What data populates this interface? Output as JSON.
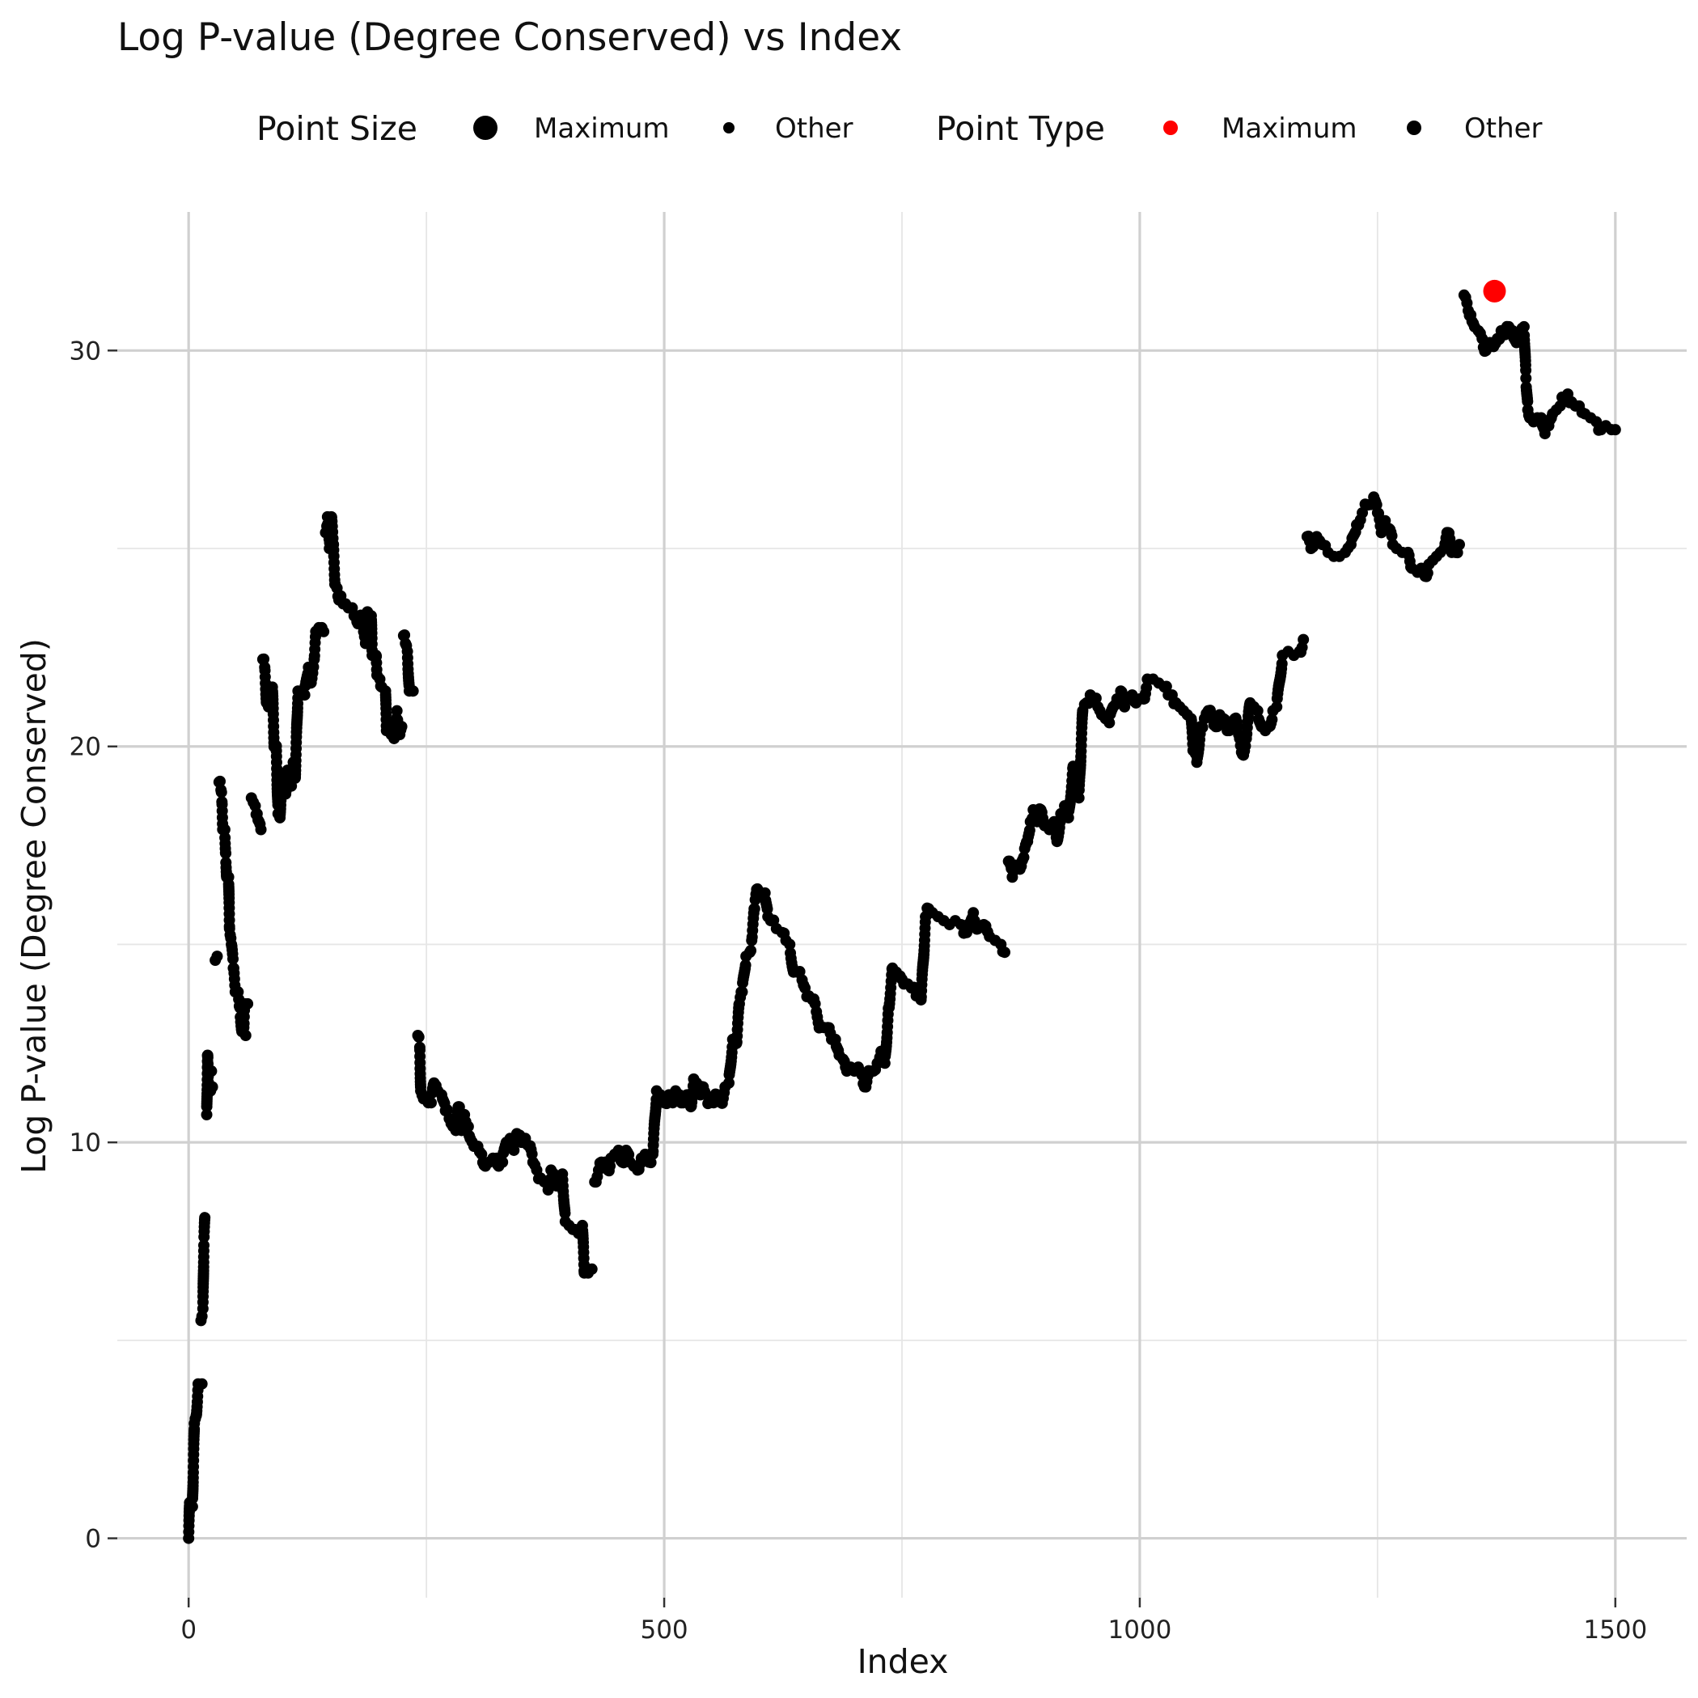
{
  "chart_data": {
    "type": "scatter",
    "title": "Log P-value (Degree Conserved) vs Index",
    "xlabel": "Index",
    "ylabel": "Log P-value (Degree Conserved)",
    "xlim": [
      -75,
      1575
    ],
    "ylim": [
      -1.5,
      33.5
    ],
    "x_ticks": [
      0,
      500,
      1000,
      1500
    ],
    "y_ticks": [
      0,
      10,
      20,
      30
    ],
    "grid": true,
    "legend_position": "top",
    "colors": {
      "maximum": "#ff0000",
      "other": "#000000"
    },
    "legends": [
      {
        "title": "Point Size",
        "entries": [
          {
            "label": "Maximum",
            "kind": "size-large"
          },
          {
            "label": "Other",
            "kind": "size-small"
          }
        ]
      },
      {
        "title": "Point Type",
        "entries": [
          {
            "label": "Maximum",
            "kind": "color-red"
          },
          {
            "label": "Other",
            "kind": "color-black"
          }
        ]
      }
    ],
    "maximum_point": {
      "x": 1373,
      "y": 31.5
    },
    "trace": [
      [
        0,
        0
      ],
      [
        1,
        0.9
      ],
      [
        4,
        0.8
      ],
      [
        6,
        2.9
      ],
      [
        8,
        3.1
      ],
      [
        10,
        3.9
      ],
      [
        14,
        3.9
      ],
      [
        13,
        5.5
      ],
      [
        15,
        5.8
      ],
      [
        16,
        7.4
      ],
      [
        17,
        8.1
      ],
      [
        19,
        10.7
      ],
      [
        20,
        12.2
      ],
      [
        21,
        11.4
      ],
      [
        23,
        11.3
      ],
      [
        25,
        11.4
      ],
      [
        24,
        11.8
      ],
      [
        28,
        14.6
      ],
      [
        30,
        14.7
      ],
      [
        32,
        19.1
      ],
      [
        34,
        18.9
      ],
      [
        35,
        18.6
      ],
      [
        36,
        17.9
      ],
      [
        38,
        17.9
      ],
      [
        39,
        17.3
      ],
      [
        40,
        16.7
      ],
      [
        42,
        16.7
      ],
      [
        43,
        15.4
      ],
      [
        45,
        15.0
      ],
      [
        47,
        14.4
      ],
      [
        49,
        13.8
      ],
      [
        52,
        13.8
      ],
      [
        54,
        13.4
      ],
      [
        56,
        12.8
      ],
      [
        58,
        12.9
      ],
      [
        59,
        13.5
      ],
      [
        62,
        13.5
      ],
      [
        60,
        12.7
      ],
      [
        66,
        18.7
      ],
      [
        70,
        18.5
      ],
      [
        72,
        18.3
      ],
      [
        74,
        18.1
      ],
      [
        76,
        17.9
      ],
      [
        78,
        22.2
      ],
      [
        80,
        22.0
      ],
      [
        82,
        21.1
      ],
      [
        84,
        21.0
      ],
      [
        86,
        21.3
      ],
      [
        88,
        21.5
      ],
      [
        90,
        20.0
      ],
      [
        92,
        20.0
      ],
      [
        94,
        18.3
      ],
      [
        96,
        18.2
      ],
      [
        98,
        19.3
      ],
      [
        100,
        19.1
      ],
      [
        102,
        18.8
      ],
      [
        104,
        19.4
      ],
      [
        106,
        19.3
      ],
      [
        108,
        19.0
      ],
      [
        110,
        19.6
      ],
      [
        112,
        19.2
      ],
      [
        115,
        21.4
      ],
      [
        118,
        21.3
      ],
      [
        122,
        21.3
      ],
      [
        126,
        22.0
      ],
      [
        128,
        21.6
      ],
      [
        132,
        22.2
      ],
      [
        134,
        22.9
      ],
      [
        137,
        23.0
      ],
      [
        140,
        23.0
      ],
      [
        142,
        22.9
      ],
      [
        144,
        25.4
      ],
      [
        146,
        25.8
      ],
      [
        148,
        25.0
      ],
      [
        150,
        25.8
      ],
      [
        152,
        25.1
      ],
      [
        154,
        24.1
      ],
      [
        156,
        24.0
      ],
      [
        158,
        23.7
      ],
      [
        160,
        23.8
      ],
      [
        165,
        23.6
      ],
      [
        168,
        23.5
      ],
      [
        172,
        23.5
      ],
      [
        176,
        23.3
      ],
      [
        178,
        23.1
      ],
      [
        180,
        23.3
      ],
      [
        184,
        22.9
      ],
      [
        186,
        22.6
      ],
      [
        188,
        23.4
      ],
      [
        192,
        23.3
      ],
      [
        193,
        22.3
      ],
      [
        197,
        22.3
      ],
      [
        198,
        21.8
      ],
      [
        201,
        21.7
      ],
      [
        203,
        21.5
      ],
      [
        207,
        21.4
      ],
      [
        208,
        20.4
      ],
      [
        213,
        20.3
      ],
      [
        216,
        20.2
      ],
      [
        219,
        20.9
      ],
      [
        222,
        20.3
      ],
      [
        224,
        20.5
      ],
      [
        226,
        22.8
      ],
      [
        228,
        22.6
      ],
      [
        230,
        22.4
      ],
      [
        232,
        21.4
      ],
      [
        236,
        21.4
      ],
      [
        241,
        12.7
      ],
      [
        243,
        12.4
      ],
      [
        244,
        11.3
      ],
      [
        247,
        11.1
      ],
      [
        252,
        11.0
      ],
      [
        255,
        11.0
      ],
      [
        258,
        11.5
      ],
      [
        262,
        11.3
      ],
      [
        266,
        11.2
      ],
      [
        270,
        10.8
      ],
      [
        274,
        10.6
      ],
      [
        278,
        10.4
      ],
      [
        281,
        10.3
      ],
      [
        284,
        10.9
      ],
      [
        287,
        10.3
      ],
      [
        290,
        10.7
      ],
      [
        294,
        10.4
      ],
      [
        296,
        10.1
      ],
      [
        300,
        9.9
      ],
      [
        304,
        9.9
      ],
      [
        308,
        9.7
      ],
      [
        312,
        9.4
      ],
      [
        316,
        9.5
      ],
      [
        320,
        9.6
      ],
      [
        324,
        9.6
      ],
      [
        326,
        9.4
      ],
      [
        330,
        9.5
      ],
      [
        334,
        10.0
      ],
      [
        338,
        10.1
      ],
      [
        342,
        9.8
      ],
      [
        346,
        10.2
      ],
      [
        350,
        10.0
      ],
      [
        354,
        10.1
      ],
      [
        358,
        9.9
      ],
      [
        362,
        9.5
      ],
      [
        366,
        9.3
      ],
      [
        370,
        9.1
      ],
      [
        374,
        9.0
      ],
      [
        378,
        8.8
      ],
      [
        381,
        9.3
      ],
      [
        384,
        9.2
      ],
      [
        387,
        8.9
      ],
      [
        390,
        9.1
      ],
      [
        393,
        9.2
      ],
      [
        396,
        8.0
      ],
      [
        400,
        7.9
      ],
      [
        404,
        7.8
      ],
      [
        406,
        7.8
      ],
      [
        410,
        7.7
      ],
      [
        414,
        7.9
      ],
      [
        416,
        6.7
      ],
      [
        420,
        6.7
      ],
      [
        424,
        6.8
      ],
      [
        427,
        9.0
      ],
      [
        431,
        9.3
      ],
      [
        434,
        9.5
      ],
      [
        438,
        9.5
      ],
      [
        441,
        9.3
      ],
      [
        444,
        9.6
      ],
      [
        448,
        9.7
      ],
      [
        452,
        9.8
      ],
      [
        456,
        9.5
      ],
      [
        460,
        9.8
      ],
      [
        464,
        9.5
      ],
      [
        468,
        9.4
      ],
      [
        472,
        9.3
      ],
      [
        476,
        9.6
      ],
      [
        480,
        9.7
      ],
      [
        484,
        9.5
      ],
      [
        488,
        9.7
      ],
      [
        492,
        11.3
      ],
      [
        496,
        11.2
      ],
      [
        500,
        11.0
      ],
      [
        505,
        11.2
      ],
      [
        509,
        11.0
      ],
      [
        512,
        11.3
      ],
      [
        516,
        11.2
      ],
      [
        520,
        11.0
      ],
      [
        524,
        11.2
      ],
      [
        528,
        10.9
      ],
      [
        531,
        11.6
      ],
      [
        534,
        11.5
      ],
      [
        538,
        11.2
      ],
      [
        541,
        11.4
      ],
      [
        544,
        11.2
      ],
      [
        548,
        11.0
      ],
      [
        552,
        11.0
      ],
      [
        556,
        11.2
      ],
      [
        560,
        11.0
      ],
      [
        564,
        11.4
      ],
      [
        568,
        11.5
      ],
      [
        572,
        12.6
      ],
      [
        576,
        12.5
      ],
      [
        579,
        13.5
      ],
      [
        582,
        13.8
      ],
      [
        586,
        14.7
      ],
      [
        590,
        14.8
      ],
      [
        592,
        15.1
      ],
      [
        595,
        15.9
      ],
      [
        598,
        16.4
      ],
      [
        602,
        16.3
      ],
      [
        606,
        16.3
      ],
      [
        609,
        15.7
      ],
      [
        612,
        15.6
      ],
      [
        618,
        15.4
      ],
      [
        624,
        15.3
      ],
      [
        628,
        15.1
      ],
      [
        632,
        15.0
      ],
      [
        636,
        14.3
      ],
      [
        640,
        14.3
      ],
      [
        645,
        14.1
      ],
      [
        648,
        13.9
      ],
      [
        652,
        13.7
      ],
      [
        656,
        13.6
      ],
      [
        660,
        13.3
      ],
      [
        664,
        12.9
      ],
      [
        668,
        12.9
      ],
      [
        672,
        12.9
      ],
      [
        676,
        12.6
      ],
      [
        680,
        12.6
      ],
      [
        684,
        12.2
      ],
      [
        688,
        12.1
      ],
      [
        692,
        11.8
      ],
      [
        696,
        11.9
      ],
      [
        700,
        11.8
      ],
      [
        704,
        11.9
      ],
      [
        708,
        11.7
      ],
      [
        712,
        11.4
      ],
      [
        716,
        11.8
      ],
      [
        720,
        11.8
      ],
      [
        724,
        12.0
      ],
      [
        728,
        12.3
      ],
      [
        732,
        12.0
      ],
      [
        736,
        13.4
      ],
      [
        740,
        14.4
      ],
      [
        744,
        14.3
      ],
      [
        748,
        14.2
      ],
      [
        752,
        14.0
      ],
      [
        756,
        14.0
      ],
      [
        760,
        13.9
      ],
      [
        765,
        13.7
      ],
      [
        770,
        13.6
      ],
      [
        775,
        15.7
      ],
      [
        778,
        15.9
      ],
      [
        782,
        15.8
      ],
      [
        788,
        15.7
      ],
      [
        794,
        15.6
      ],
      [
        800,
        15.5
      ],
      [
        806,
        15.6
      ],
      [
        812,
        15.5
      ],
      [
        818,
        15.3
      ],
      [
        822,
        15.5
      ],
      [
        825,
        15.8
      ],
      [
        830,
        15.4
      ],
      [
        836,
        15.5
      ],
      [
        842,
        15.2
      ],
      [
        848,
        15.1
      ],
      [
        854,
        15.0
      ],
      [
        858,
        14.8
      ],
      [
        862,
        17.1
      ],
      [
        866,
        16.7
      ],
      [
        870,
        17.0
      ],
      [
        874,
        16.9
      ],
      [
        878,
        17.2
      ],
      [
        882,
        17.6
      ],
      [
        885,
        18.1
      ],
      [
        888,
        18.4
      ],
      [
        892,
        18.1
      ],
      [
        896,
        18.4
      ],
      [
        900,
        18.0
      ],
      [
        905,
        17.9
      ],
      [
        910,
        18.1
      ],
      [
        913,
        17.6
      ],
      [
        917,
        18.3
      ],
      [
        921,
        18.5
      ],
      [
        925,
        18.2
      ],
      [
        930,
        19.5
      ],
      [
        933,
        18.8
      ],
      [
        936,
        18.7
      ],
      [
        940,
        20.9
      ],
      [
        944,
        21.1
      ],
      [
        948,
        21.3
      ],
      [
        952,
        21.2
      ],
      [
        956,
        21.0
      ],
      [
        960,
        20.8
      ],
      [
        964,
        20.7
      ],
      [
        968,
        20.6
      ],
      [
        972,
        21.0
      ],
      [
        976,
        21.2
      ],
      [
        980,
        21.4
      ],
      [
        984,
        21.0
      ],
      [
        988,
        21.2
      ],
      [
        992,
        21.3
      ],
      [
        996,
        21.1
      ],
      [
        1000,
        21.2
      ],
      [
        1004,
        21.2
      ],
      [
        1008,
        21.7
      ],
      [
        1014,
        21.7
      ],
      [
        1020,
        21.6
      ],
      [
        1026,
        21.5
      ],
      [
        1030,
        21.3
      ],
      [
        1034,
        21.3
      ],
      [
        1038,
        21.1
      ],
      [
        1042,
        21.0
      ],
      [
        1046,
        20.9
      ],
      [
        1050,
        20.8
      ],
      [
        1054,
        20.7
      ],
      [
        1056,
        19.9
      ],
      [
        1060,
        19.6
      ],
      [
        1064,
        20.5
      ],
      [
        1068,
        20.7
      ],
      [
        1072,
        20.9
      ],
      [
        1076,
        20.7
      ],
      [
        1080,
        20.5
      ],
      [
        1084,
        20.8
      ],
      [
        1088,
        20.7
      ],
      [
        1092,
        20.4
      ],
      [
        1096,
        20.6
      ],
      [
        1100,
        20.7
      ],
      [
        1104,
        20.3
      ],
      [
        1108,
        19.8
      ],
      [
        1112,
        20.2
      ],
      [
        1116,
        21.1
      ],
      [
        1120,
        21.0
      ],
      [
        1124,
        20.9
      ],
      [
        1128,
        20.5
      ],
      [
        1132,
        20.4
      ],
      [
        1136,
        20.5
      ],
      [
        1140,
        20.9
      ],
      [
        1144,
        21.0
      ],
      [
        1150,
        22.3
      ],
      [
        1156,
        22.4
      ],
      [
        1162,
        22.3
      ],
      [
        1168,
        22.4
      ],
      [
        1172,
        22.7
      ],
      [
        1176,
        25.3
      ],
      [
        1180,
        25.0
      ],
      [
        1186,
        25.3
      ],
      [
        1192,
        25.1
      ],
      [
        1198,
        24.9
      ],
      [
        1204,
        24.8
      ],
      [
        1210,
        24.8
      ],
      [
        1216,
        24.9
      ],
      [
        1222,
        25.1
      ],
      [
        1228,
        25.6
      ],
      [
        1234,
        25.9
      ],
      [
        1240,
        26.1
      ],
      [
        1246,
        26.3
      ],
      [
        1250,
        25.9
      ],
      [
        1254,
        25.4
      ],
      [
        1258,
        25.7
      ],
      [
        1262,
        25.5
      ],
      [
        1266,
        25.1
      ],
      [
        1270,
        25.0
      ],
      [
        1276,
        24.9
      ],
      [
        1282,
        24.9
      ],
      [
        1286,
        24.5
      ],
      [
        1292,
        24.4
      ],
      [
        1296,
        24.5
      ],
      [
        1300,
        24.3
      ],
      [
        1304,
        24.6
      ],
      [
        1308,
        24.7
      ],
      [
        1312,
        24.8
      ],
      [
        1316,
        24.9
      ],
      [
        1320,
        25.0
      ],
      [
        1324,
        25.4
      ],
      [
        1328,
        24.9
      ],
      [
        1332,
        24.9
      ],
      [
        1336,
        25.1
      ],
      [
        1341,
        31.4
      ],
      [
        1344,
        31.2
      ],
      [
        1348,
        30.9
      ],
      [
        1352,
        30.6
      ],
      [
        1356,
        30.5
      ],
      [
        1360,
        30.3
      ],
      [
        1364,
        30.0
      ],
      [
        1368,
        30.2
      ],
      [
        1372,
        30.1
      ],
      [
        1376,
        30.3
      ],
      [
        1380,
        30.5
      ],
      [
        1384,
        30.4
      ],
      [
        1388,
        30.6
      ],
      [
        1392,
        30.5
      ],
      [
        1396,
        30.2
      ],
      [
        1400,
        30.4
      ],
      [
        1404,
        30.6
      ],
      [
        1406,
        29.3
      ],
      [
        1408,
        28.5
      ],
      [
        1410,
        28.3
      ],
      [
        1414,
        28.2
      ],
      [
        1418,
        28.3
      ],
      [
        1422,
        28.3
      ],
      [
        1426,
        27.9
      ],
      [
        1430,
        28.1
      ],
      [
        1434,
        28.4
      ],
      [
        1438,
        28.5
      ],
      [
        1442,
        28.6
      ],
      [
        1446,
        28.8
      ],
      [
        1450,
        28.9
      ],
      [
        1454,
        28.7
      ],
      [
        1458,
        28.6
      ],
      [
        1462,
        28.6
      ],
      [
        1468,
        28.4
      ],
      [
        1474,
        28.3
      ],
      [
        1480,
        28.2
      ],
      [
        1485,
        28.0
      ],
      [
        1490,
        28.1
      ],
      [
        1496,
        28.0
      ],
      [
        1500,
        28.0
      ]
    ]
  }
}
